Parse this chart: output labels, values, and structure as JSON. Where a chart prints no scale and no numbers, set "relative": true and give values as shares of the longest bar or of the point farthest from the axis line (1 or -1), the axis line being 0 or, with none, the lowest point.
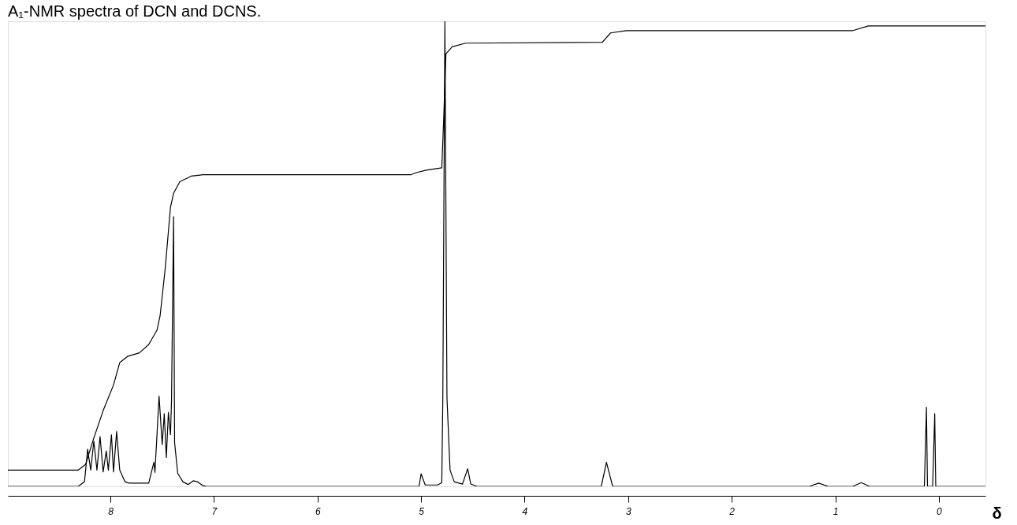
{
  "chart_data": {
    "type": "line",
    "title": "A₁-NMR spectra of DCN and DCNS.",
    "xlabel": "δ",
    "relative": true,
    "grid": false,
    "legend": false,
    "marker": "none",
    "line_style": "solid",
    "xlim": [
      8.99,
      -0.45
    ],
    "xticks": [
      8,
      7,
      6,
      5,
      4,
      3,
      2,
      1,
      0
    ],
    "series": [
      {
        "color": "#000000",
        "x": [
          8.99,
          8.31,
          8.25,
          8.22,
          8.19,
          8.16,
          8.13,
          8.1,
          8.07,
          8.04,
          8.02,
          7.99,
          7.97,
          7.94,
          7.91,
          7.86,
          7.82,
          7.63,
          7.58,
          7.57,
          7.53,
          7.5,
          7.48,
          7.46,
          7.44,
          7.42,
          7.41,
          7.39,
          7.38,
          7.35,
          7.3,
          7.25,
          7.2,
          7.16,
          7.11,
          7.07,
          5.02,
          5.0,
          4.96,
          4.84,
          4.8,
          4.79,
          4.77,
          4.75,
          4.72,
          4.68,
          4.6,
          4.55,
          4.52,
          4.46,
          3.26,
          3.21,
          3.15,
          1.25,
          1.16,
          1.07,
          0.83,
          0.75,
          0.67,
          0.14,
          0.12,
          0.11,
          0.06,
          0.04,
          0.03,
          -0.45
        ],
        "values": [
          0,
          0,
          0.01,
          0.08,
          0.035,
          0.097,
          0.035,
          0.107,
          0.031,
          0.076,
          0.035,
          0.111,
          0.031,
          0.118,
          0.035,
          0.01,
          0.007,
          0.007,
          0.052,
          0.03,
          0.194,
          0.09,
          0.156,
          0.062,
          0.159,
          0.111,
          0.183,
          0.58,
          0.094,
          0.028,
          0.01,
          0.004,
          0.012,
          0.01,
          0.002,
          0,
          0,
          0.027,
          0.003,
          0.003,
          0.008,
          0.19,
          1,
          0.19,
          0.035,
          0.01,
          0.005,
          0.038,
          0.005,
          0,
          0,
          0.052,
          0,
          0,
          0.007,
          0,
          0,
          0.008,
          0,
          0,
          0.17,
          0,
          0,
          0.156,
          0,
          0
        ]
      },
      {
        "color": "#000000",
        "x": [
          8.99,
          8.31,
          8.24,
          8.16,
          8.07,
          7.97,
          7.91,
          7.83,
          7.72,
          7.63,
          7.55,
          7.52,
          7.47,
          7.42,
          7.39,
          7.33,
          7.22,
          7.11,
          5.1,
          5.04,
          4.95,
          4.8,
          4.78,
          4.76,
          4.7,
          4.57,
          3.25,
          3.17,
          3.02,
          0.83,
          0.68,
          -0.45
        ],
        "values": [
          0.035,
          0.035,
          0.047,
          0.104,
          0.163,
          0.218,
          0.266,
          0.28,
          0.287,
          0.305,
          0.336,
          0.367,
          0.47,
          0.6,
          0.63,
          0.655,
          0.667,
          0.67,
          0.67,
          0.675,
          0.68,
          0.685,
          0.8,
          0.93,
          0.945,
          0.953,
          0.955,
          0.975,
          0.98,
          0.98,
          0.99,
          0.99
        ]
      }
    ]
  }
}
